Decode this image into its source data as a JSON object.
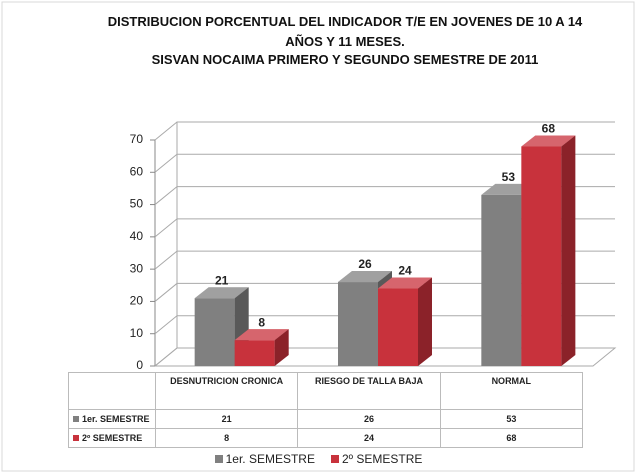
{
  "chart_data": {
    "type": "bar3d",
    "title": "DISTRIBUCION PORCENTUAL DEL INDICADOR T/E EN JOVENES DE 10 A 14 AÑOS Y 11 MESES.",
    "subtitle": "SISVAN NOCAIMA PRIMERO Y SEGUNDO SEMESTRE DE 2011",
    "categories": [
      "DESNUTRICION CRONICA",
      "RIESGO DE TALLA BAJA",
      "NORMAL"
    ],
    "series": [
      {
        "name": "1er. SEMESTRE",
        "color": "#808080",
        "values": [
          21,
          26,
          53
        ]
      },
      {
        "name": "2º SEMESTRE",
        "color": "#c8323c",
        "values": [
          8,
          24,
          68
        ]
      }
    ],
    "ylim": [
      0,
      70
    ],
    "yticks": [
      0,
      10,
      20,
      30,
      40,
      50,
      60,
      70
    ],
    "grid": true
  }
}
